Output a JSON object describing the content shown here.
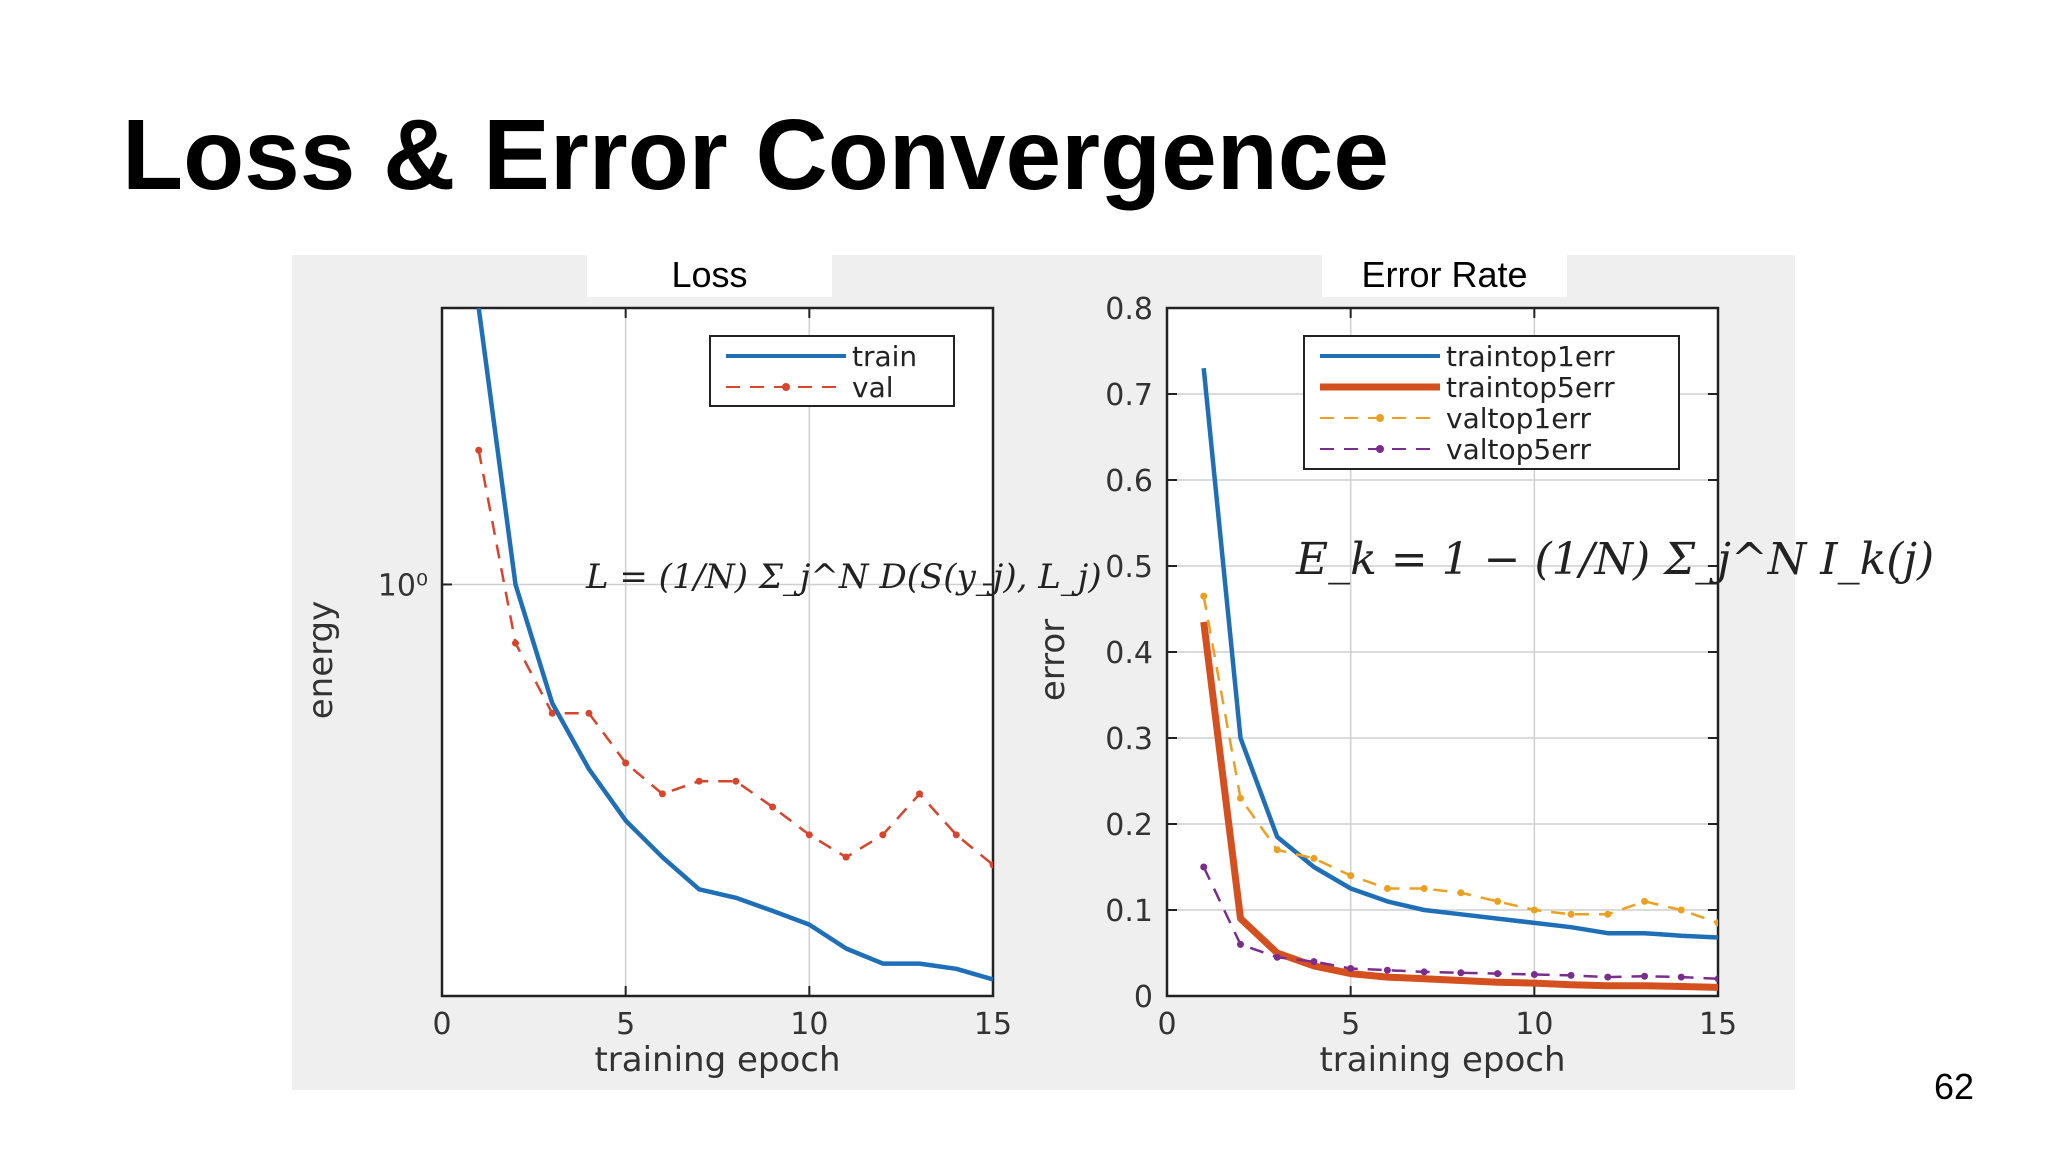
{
  "slide": {
    "title": "Loss & Error Convergence",
    "page_number": "62"
  },
  "panels": {
    "left_caption": "Loss",
    "right_caption": "Error Rate"
  },
  "chart_data": [
    {
      "type": "line",
      "title": "Loss",
      "xlabel": "training epoch",
      "ylabel": "energy",
      "xlim": [
        0,
        15
      ],
      "yscale": "log",
      "ylim": [
        0.32,
        2.15
      ],
      "xticks": [
        0,
        5,
        10,
        15
      ],
      "xtick_labels": [
        "0",
        "5",
        "10",
        "15"
      ],
      "yticks": [
        1
      ],
      "ytick_labels": [
        "10⁰"
      ],
      "grid": true,
      "legend_position": "top-right",
      "formula": "L = (1/N) Σ_j^N D(S(y_j), L_j)",
      "series": [
        {
          "name": "train",
          "style": "solid",
          "color": "#1f6fb8",
          "x": [
            1,
            2,
            3,
            4,
            5,
            6,
            7,
            8,
            9,
            10,
            11,
            12,
            13,
            14,
            15
          ],
          "y": [
            2.15,
            1.0,
            0.72,
            0.6,
            0.52,
            0.47,
            0.43,
            0.42,
            0.405,
            0.39,
            0.365,
            0.35,
            0.35,
            0.345,
            0.335
          ]
        },
        {
          "name": "val",
          "style": "dashed",
          "marker": "dot",
          "color": "#d9442a",
          "x": [
            1,
            2,
            3,
            4,
            5,
            6,
            7,
            8,
            9,
            10,
            11,
            12,
            13,
            14,
            15
          ],
          "y": [
            1.45,
            0.85,
            0.7,
            0.7,
            0.61,
            0.56,
            0.58,
            0.58,
            0.54,
            0.5,
            0.47,
            0.5,
            0.56,
            0.5,
            0.46
          ]
        }
      ]
    },
    {
      "type": "line",
      "title": "Error Rate",
      "xlabel": "training epoch",
      "ylabel": "error",
      "xlim": [
        0,
        15
      ],
      "ylim": [
        0,
        0.8
      ],
      "xticks": [
        0,
        5,
        10,
        15
      ],
      "xtick_labels": [
        "0",
        "5",
        "10",
        "15"
      ],
      "yticks": [
        0,
        0.1,
        0.2,
        0.3,
        0.4,
        0.5,
        0.6,
        0.7,
        0.8
      ],
      "ytick_labels": [
        "0",
        "0.1",
        "0.2",
        "0.3",
        "0.4",
        "0.5",
        "0.6",
        "0.7",
        "0.8"
      ],
      "grid": true,
      "legend_position": "top-right",
      "formula": "E_k = 1 − (1/N) Σ_j^N I_k(j)",
      "series": [
        {
          "name": "traintop1err",
          "style": "solid",
          "color": "#1f6fb8",
          "x": [
            1,
            2,
            3,
            4,
            5,
            6,
            7,
            8,
            9,
            10,
            11,
            12,
            13,
            14,
            15
          ],
          "y": [
            0.73,
            0.3,
            0.185,
            0.15,
            0.125,
            0.11,
            0.1,
            0.095,
            0.09,
            0.085,
            0.08,
            0.073,
            0.073,
            0.07,
            0.068
          ]
        },
        {
          "name": "traintop5err",
          "style": "solid-thick",
          "color": "#d5501f",
          "x": [
            1,
            2,
            3,
            4,
            5,
            6,
            7,
            8,
            9,
            10,
            11,
            12,
            13,
            14,
            15
          ],
          "y": [
            0.435,
            0.09,
            0.05,
            0.035,
            0.026,
            0.022,
            0.02,
            0.018,
            0.016,
            0.015,
            0.013,
            0.012,
            0.012,
            0.011,
            0.01
          ]
        },
        {
          "name": "valtop1err",
          "style": "dashed",
          "marker": "dot",
          "color": "#eda020",
          "x": [
            1,
            2,
            3,
            4,
            5,
            6,
            7,
            8,
            9,
            10,
            11,
            12,
            13,
            14,
            15
          ],
          "y": [
            0.465,
            0.23,
            0.17,
            0.16,
            0.14,
            0.125,
            0.125,
            0.12,
            0.11,
            0.1,
            0.095,
            0.095,
            0.11,
            0.1,
            0.085
          ]
        },
        {
          "name": "valtop5err",
          "style": "dashed",
          "marker": "dot",
          "color": "#7b2d8e",
          "x": [
            1,
            2,
            3,
            4,
            5,
            6,
            7,
            8,
            9,
            10,
            11,
            12,
            13,
            14,
            15
          ],
          "y": [
            0.15,
            0.06,
            0.045,
            0.04,
            0.032,
            0.03,
            0.028,
            0.027,
            0.026,
            0.025,
            0.024,
            0.022,
            0.023,
            0.022,
            0.02
          ]
        }
      ]
    }
  ]
}
